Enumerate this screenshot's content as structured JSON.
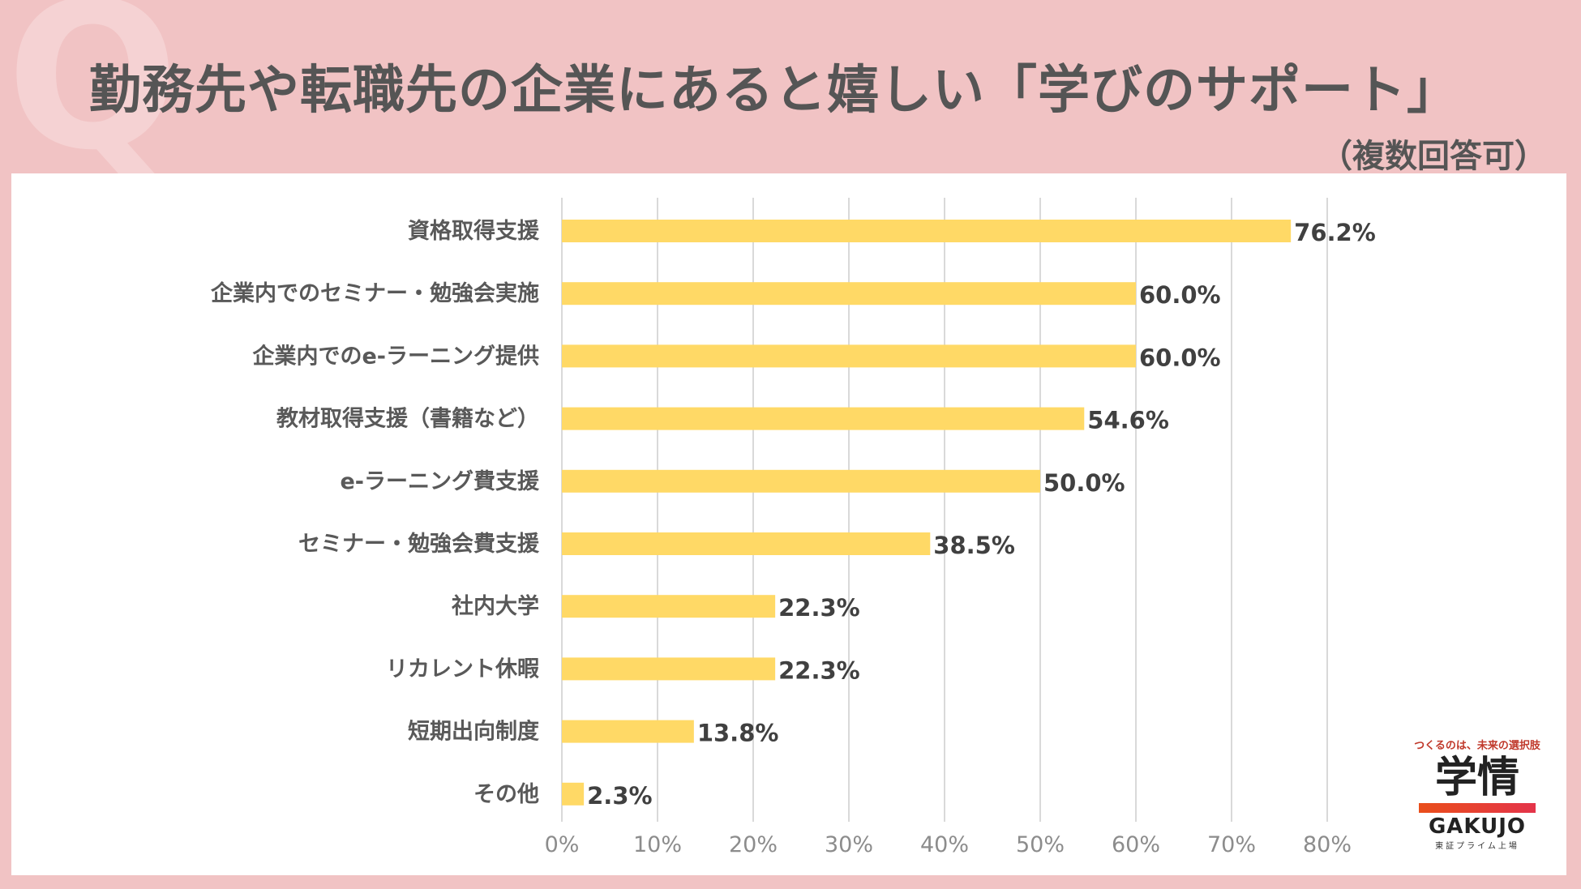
{
  "header": {
    "q_mark": "Q",
    "title": "勤務先や転職先の企業にあると嬉しい「学びのサポート」",
    "subtitle": "（複数回答可）"
  },
  "chart_data": {
    "type": "bar",
    "orientation": "horizontal",
    "categories": [
      "資格取得支援",
      "企業内でのセミナー・勉強会実施",
      "企業内でのe-ラーニング提供",
      "教材取得支援（書籍など）",
      "e-ラーニング費支援",
      "セミナー・勉強会費支援",
      "社内大学",
      "リカレント休暇",
      "短期出向制度",
      "その他"
    ],
    "values": [
      76.2,
      60.0,
      60.0,
      54.6,
      50.0,
      38.5,
      22.3,
      22.3,
      13.8,
      2.3
    ],
    "value_labels": [
      "76.2%",
      "60.0%",
      "60.0%",
      "54.6%",
      "50.0%",
      "38.5%",
      "22.3%",
      "22.3%",
      "13.8%",
      "2.3%"
    ],
    "xlim": [
      0,
      80
    ],
    "xticks": [
      "0%",
      "10%",
      "20%",
      "30%",
      "40%",
      "50%",
      "60%",
      "70%",
      "80%"
    ],
    "grid": true,
    "bar_color": "#ffd966",
    "grid_color": "#d9d9d9"
  },
  "logo": {
    "tagline": "つくるのは、未来の選択肢",
    "kanji": "学情",
    "name": "GAKUJO",
    "listing": "東証プライム上場"
  }
}
